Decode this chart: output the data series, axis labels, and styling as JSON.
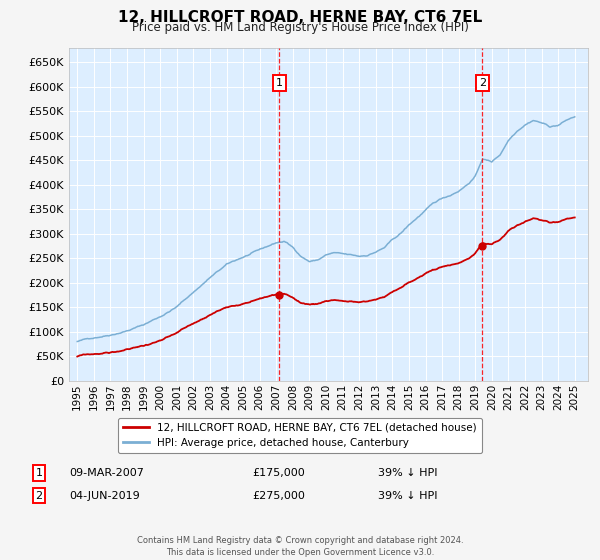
{
  "title": "12, HILLCROFT ROAD, HERNE BAY, CT6 7EL",
  "subtitle": "Price paid vs. HM Land Registry's House Price Index (HPI)",
  "legend_line1": "12, HILLCROFT ROAD, HERNE BAY, CT6 7EL (detached house)",
  "legend_line2": "HPI: Average price, detached house, Canterbury",
  "footer": "Contains HM Land Registry data © Crown copyright and database right 2024.\nThis data is licensed under the Open Government Licence v3.0.",
  "sale1_label": "1",
  "sale1_date": "09-MAR-2007",
  "sale1_price": "£175,000",
  "sale1_hpi": "39% ↓ HPI",
  "sale1_year": 2007.19,
  "sale1_value": 175000,
  "sale2_label": "2",
  "sale2_date": "04-JUN-2019",
  "sale2_price": "£275,000",
  "sale2_hpi": "39% ↓ HPI",
  "sale2_year": 2019.43,
  "sale2_value": 275000,
  "red_color": "#cc0000",
  "blue_color": "#7bafd4",
  "background_color": "#ddeeff",
  "grid_color": "#ffffff",
  "fig_background": "#f5f5f5",
  "ylim": [
    0,
    680000
  ],
  "yticks": [
    0,
    50000,
    100000,
    150000,
    200000,
    250000,
    300000,
    350000,
    400000,
    450000,
    500000,
    550000,
    600000,
    650000
  ],
  "xlim_start": 1994.5,
  "xlim_end": 2025.8
}
